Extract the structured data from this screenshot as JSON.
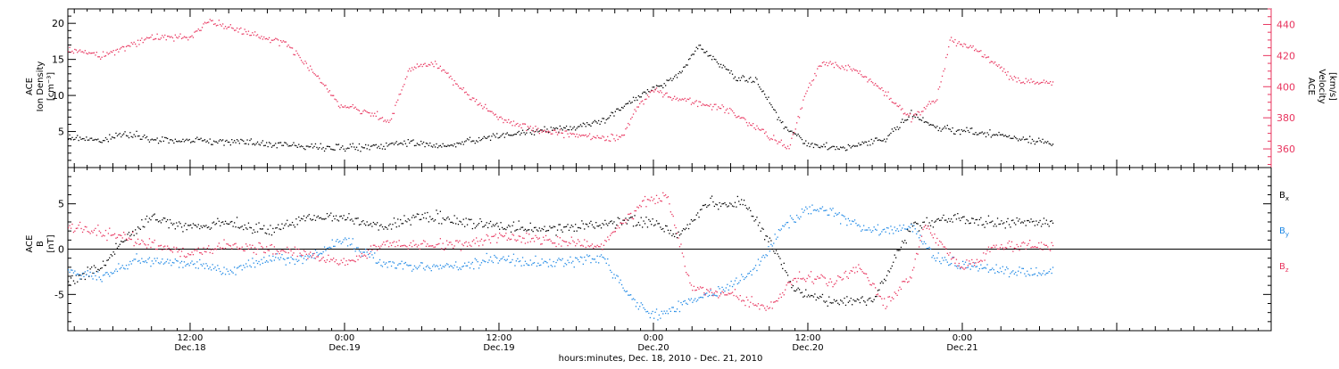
{
  "chart_data": [
    {
      "type": "scatter",
      "panel": "top",
      "x_axis": {
        "range": [
          "2010-12-18T02:30",
          "2010-12-22T00:00"
        ],
        "ticks": [
          {
            "t": "2010-12-18T12:00",
            "time": "12:00",
            "date": "Dec.18"
          },
          {
            "t": "2010-12-19T00:00",
            "time": "0:00",
            "date": "Dec.19"
          },
          {
            "t": "2010-12-19T12:00",
            "time": "12:00",
            "date": "Dec.19"
          },
          {
            "t": "2010-12-20T00:00",
            "time": "0:00",
            "date": "Dec.20"
          },
          {
            "t": "2010-12-20T12:00",
            "time": "12:00",
            "date": "Dec.20"
          },
          {
            "t": "2010-12-21T00:00",
            "time": "0:00",
            "date": "Dec.21"
          }
        ],
        "label": "hours:minutes, Dec. 18, 2010 - Dec. 21, 2010"
      },
      "left_axis": {
        "label_lines": [
          "ACE",
          "Ion Density",
          "[cm⁻³]"
        ],
        "ylim": [
          0,
          22
        ],
        "ticks": [
          5,
          10,
          15,
          20
        ],
        "color": "#000000"
      },
      "right_axis": {
        "label_lines": [
          "ACE",
          "Velocity",
          "[km/s]"
        ],
        "ylim": [
          348,
          450
        ],
        "ticks": [
          360,
          380,
          400,
          420,
          440
        ],
        "color": "#e8345e"
      },
      "series": [
        {
          "axis": "left",
          "color": "#000000",
          "points": [
            [
              "2010-12-18T02:30",
              4.2
            ],
            [
              "2010-12-18T05:00",
              3.8
            ],
            [
              "2010-12-18T07:00",
              4.8
            ],
            [
              "2010-12-18T09:00",
              3.9
            ],
            [
              "2010-12-18T12:00",
              3.8
            ],
            [
              "2010-12-18T15:00",
              3.6
            ],
            [
              "2010-12-18T18:00",
              3.4
            ],
            [
              "2010-12-18T21:00",
              3.0
            ],
            [
              "2010-12-19T00:00",
              2.8
            ],
            [
              "2010-12-19T03:00",
              3.0
            ],
            [
              "2010-12-19T05:00",
              3.6
            ],
            [
              "2010-12-19T07:00",
              3.0
            ],
            [
              "2010-12-19T09:00",
              3.6
            ],
            [
              "2010-12-19T12:00",
              4.5
            ],
            [
              "2010-12-19T15:00",
              5.2
            ],
            [
              "2010-12-19T18:00",
              5.6
            ],
            [
              "2010-12-19T20:00",
              6.5
            ],
            [
              "2010-12-19T22:00",
              9.0
            ],
            [
              "2010-12-20T00:00",
              11.0
            ],
            [
              "2010-12-20T02:00",
              13.0
            ],
            [
              "2010-12-20T03:30",
              17.0
            ],
            [
              "2010-12-20T05:00",
              14.5
            ],
            [
              "2010-12-20T06:30",
              12.5
            ],
            [
              "2010-12-20T08:00",
              12.0
            ],
            [
              "2010-12-20T10:00",
              6.0
            ],
            [
              "2010-12-20T12:00",
              3.2
            ],
            [
              "2010-12-20T15:00",
              2.8
            ],
            [
              "2010-12-20T18:00",
              4.0
            ],
            [
              "2010-12-20T20:00",
              7.5
            ],
            [
              "2010-12-20T22:00",
              5.5
            ],
            [
              "2010-12-21T01:00",
              5.0
            ],
            [
              "2010-12-21T04:00",
              4.2
            ],
            [
              "2010-12-21T07:00",
              3.5
            ]
          ]
        },
        {
          "axis": "right",
          "color": "#e8345e",
          "points": [
            [
              "2010-12-18T02:30",
              425
            ],
            [
              "2010-12-18T05:00",
              420
            ],
            [
              "2010-12-18T09:00",
              432
            ],
            [
              "2010-12-18T12:00",
              432
            ],
            [
              "2010-12-18T13:30",
              442
            ],
            [
              "2010-12-18T16:00",
              436
            ],
            [
              "2010-12-18T19:30",
              428
            ],
            [
              "2010-12-18T21:30",
              410
            ],
            [
              "2010-12-18T23:30",
              390
            ],
            [
              "2010-12-19T01:30",
              384
            ],
            [
              "2010-12-19T03:30",
              378
            ],
            [
              "2010-12-19T05:00",
              412
            ],
            [
              "2010-12-19T07:00",
              415
            ],
            [
              "2010-12-19T10:00",
              392
            ],
            [
              "2010-12-19T12:00",
              380
            ],
            [
              "2010-12-19T15:00",
              372
            ],
            [
              "2010-12-19T19:00",
              368
            ],
            [
              "2010-12-19T21:30",
              368
            ],
            [
              "2010-12-19T22:30",
              385
            ],
            [
              "2010-12-20T00:00",
              398
            ],
            [
              "2010-12-20T02:00",
              392
            ],
            [
              "2010-12-20T06:00",
              385
            ],
            [
              "2010-12-20T09:00",
              368
            ],
            [
              "2010-12-20T10:30",
              362
            ],
            [
              "2010-12-20T12:00",
              400
            ],
            [
              "2010-12-20T13:00",
              416
            ],
            [
              "2010-12-20T16:00",
              410
            ],
            [
              "2010-12-20T18:00",
              396
            ],
            [
              "2010-12-20T20:00",
              380
            ],
            [
              "2010-12-20T22:00",
              392
            ],
            [
              "2010-12-20T23:00",
              430
            ],
            [
              "2010-12-21T01:00",
              425
            ],
            [
              "2010-12-21T04:00",
              405
            ],
            [
              "2010-12-21T07:00",
              402
            ]
          ]
        }
      ]
    },
    {
      "type": "scatter",
      "panel": "bottom",
      "left_axis": {
        "label_lines": [
          "ACE",
          "B",
          "[nT]"
        ],
        "ylim": [
          -9,
          9
        ],
        "ticks": [
          -5,
          0,
          5
        ],
        "zero_line": true
      },
      "series": [
        {
          "name": "Bx",
          "legend": {
            "main": "B",
            "sub": "x"
          },
          "color": "#000000",
          "points": [
            [
              "2010-12-18T02:30",
              -3.5
            ],
            [
              "2010-12-18T05:00",
              -2.0
            ],
            [
              "2010-12-18T07:00",
              1.5
            ],
            [
              "2010-12-18T09:00",
              3.5
            ],
            [
              "2010-12-18T12:00",
              2.5
            ],
            [
              "2010-12-18T15:00",
              3.0
            ],
            [
              "2010-12-18T18:00",
              2.0
            ],
            [
              "2010-12-18T21:00",
              3.5
            ],
            [
              "2010-12-19T00:00",
              3.5
            ],
            [
              "2010-12-19T03:00",
              2.5
            ],
            [
              "2010-12-19T06:00",
              3.8
            ],
            [
              "2010-12-19T09:00",
              3.2
            ],
            [
              "2010-12-19T12:00",
              2.5
            ],
            [
              "2010-12-19T15:00",
              2.2
            ],
            [
              "2010-12-19T19:00",
              2.5
            ],
            [
              "2010-12-19T22:00",
              3.2
            ],
            [
              "2010-12-20T00:00",
              3.0
            ],
            [
              "2010-12-20T02:00",
              1.5
            ],
            [
              "2010-12-20T04:00",
              5.0
            ],
            [
              "2010-12-20T07:00",
              5.2
            ],
            [
              "2010-12-20T09:00",
              1.0
            ],
            [
              "2010-12-20T11:00",
              -4.5
            ],
            [
              "2010-12-20T14:00",
              -5.8
            ],
            [
              "2010-12-20T17:00",
              -5.5
            ],
            [
              "2010-12-20T20:00",
              2.5
            ],
            [
              "2010-12-20T23:00",
              3.5
            ],
            [
              "2010-12-21T02:00",
              3.0
            ],
            [
              "2010-12-21T07:00",
              3.0
            ]
          ]
        },
        {
          "name": "By",
          "legend": {
            "main": "B",
            "sub": "y"
          },
          "color": "#1e88e5",
          "points": [
            [
              "2010-12-18T02:30",
              -2.5
            ],
            [
              "2010-12-18T05:00",
              -3.0
            ],
            [
              "2010-12-18T08:00",
              -1.0
            ],
            [
              "2010-12-18T12:00",
              -1.5
            ],
            [
              "2010-12-18T15:00",
              -2.5
            ],
            [
              "2010-12-18T18:00",
              -1.0
            ],
            [
              "2010-12-18T21:00",
              -1.0
            ],
            [
              "2010-12-19T00:00",
              1.0
            ],
            [
              "2010-12-19T03:00",
              -1.5
            ],
            [
              "2010-12-19T06:00",
              -2.0
            ],
            [
              "2010-12-19T09:00",
              -1.8
            ],
            [
              "2010-12-19T12:00",
              -1.0
            ],
            [
              "2010-12-19T16:00",
              -1.5
            ],
            [
              "2010-12-19T20:00",
              -0.8
            ],
            [
              "2010-12-19T22:00",
              -5.0
            ],
            [
              "2010-12-20T00:00",
              -7.5
            ],
            [
              "2010-12-20T03:00",
              -5.5
            ],
            [
              "2010-12-20T06:00",
              -4.0
            ],
            [
              "2010-12-20T08:00",
              -2.0
            ],
            [
              "2010-12-20T10:00",
              2.5
            ],
            [
              "2010-12-20T12:00",
              4.5
            ],
            [
              "2010-12-20T14:00",
              4.0
            ],
            [
              "2010-12-20T17:00",
              2.0
            ],
            [
              "2010-12-20T20:00",
              2.5
            ],
            [
              "2010-12-20T22:00",
              -1.0
            ],
            [
              "2010-12-21T01:00",
              -2.0
            ],
            [
              "2010-12-21T04:00",
              -2.5
            ],
            [
              "2010-12-21T07:00",
              -2.5
            ]
          ]
        },
        {
          "name": "Bz",
          "legend": {
            "main": "B",
            "sub": "z"
          },
          "color": "#e8345e",
          "points": [
            [
              "2010-12-18T02:30",
              2.5
            ],
            [
              "2010-12-18T05:00",
              2.0
            ],
            [
              "2010-12-18T08:00",
              1.0
            ],
            [
              "2010-12-18T12:00",
              -0.5
            ],
            [
              "2010-12-18T15:00",
              0.5
            ],
            [
              "2010-12-18T18:00",
              0.0
            ],
            [
              "2010-12-18T21:00",
              -0.5
            ],
            [
              "2010-12-19T00:00",
              -1.5
            ],
            [
              "2010-12-19T03:00",
              0.5
            ],
            [
              "2010-12-19T06:00",
              0.5
            ],
            [
              "2010-12-19T09:00",
              0.5
            ],
            [
              "2010-12-19T12:00",
              1.5
            ],
            [
              "2010-12-19T16:00",
              1.0
            ],
            [
              "2010-12-19T20:00",
              0.5
            ],
            [
              "2010-12-19T23:00",
              5.0
            ],
            [
              "2010-12-20T01:00",
              6.0
            ],
            [
              "2010-12-20T03:00",
              -4.5
            ],
            [
              "2010-12-20T06:00",
              -5.0
            ],
            [
              "2010-12-20T09:00",
              -6.5
            ],
            [
              "2010-12-20T11:00",
              -3.0
            ],
            [
              "2010-12-20T14:00",
              -3.5
            ],
            [
              "2010-12-20T16:00",
              -2.0
            ],
            [
              "2010-12-20T18:00",
              -6.0
            ],
            [
              "2010-12-20T20:00",
              -3.0
            ],
            [
              "2010-12-20T21:00",
              2.5
            ],
            [
              "2010-12-21T00:00",
              -2.0
            ],
            [
              "2010-12-21T03:00",
              0.5
            ],
            [
              "2010-12-21T07:00",
              0.5
            ]
          ]
        }
      ]
    }
  ]
}
